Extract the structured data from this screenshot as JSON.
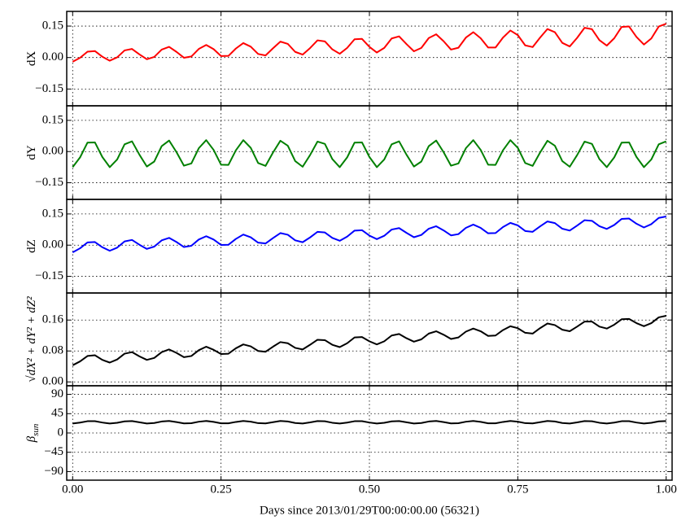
{
  "chart_data": [
    {
      "type": "line",
      "ylabel": "dX",
      "color": "#ff0000",
      "grid": true,
      "xlim": [
        -0.01,
        1.01
      ],
      "xticks": [
        0,
        0.25,
        0.5,
        0.75,
        1
      ],
      "ylim": [
        -0.23,
        0.22
      ],
      "yticks": [
        {
          "value": -0.15,
          "label": "−0.15"
        },
        {
          "value": 0,
          "label": "0.00"
        },
        {
          "value": 0.15,
          "label": "0.15"
        }
      ],
      "x": [
        0,
        0.0125,
        0.025,
        0.0375,
        0.05,
        0.0625,
        0.075,
        0.0875,
        0.1,
        0.1125,
        0.125,
        0.1375,
        0.15,
        0.1625,
        0.175,
        0.1875,
        0.2,
        0.2125,
        0.225,
        0.2375,
        0.25,
        0.2625,
        0.275,
        0.2875,
        0.3,
        0.3125,
        0.325,
        0.3375,
        0.35,
        0.3625,
        0.375,
        0.3875,
        0.4,
        0.4125,
        0.425,
        0.4375,
        0.45,
        0.4625,
        0.475,
        0.4875,
        0.5,
        0.5125,
        0.525,
        0.5375,
        0.55,
        0.5625,
        0.575,
        0.5875,
        0.6,
        0.6125,
        0.625,
        0.6375,
        0.65,
        0.6625,
        0.675,
        0.6875,
        0.7,
        0.7125,
        0.725,
        0.7375,
        0.75,
        0.7625,
        0.775,
        0.7875,
        0.8,
        0.8125,
        0.825,
        0.8375,
        0.85,
        0.8625,
        0.875,
        0.8875,
        0.9,
        0.9125,
        0.925,
        0.9375,
        0.95,
        0.9625,
        0.975,
        0.9875,
        1
      ],
      "values": [
        -0.02,
        -0.001,
        0.028,
        0.031,
        0.004,
        -0.015,
        0.001,
        0.034,
        0.041,
        0.015,
        -0.008,
        0.003,
        0.038,
        0.051,
        0.027,
        -0.001,
        0.005,
        0.041,
        0.06,
        0.04,
        0.007,
        0.008,
        0.043,
        0.069,
        0.052,
        0.017,
        0.01,
        0.044,
        0.076,
        0.065,
        0.027,
        0.014,
        0.045,
        0.082,
        0.077,
        0.039,
        0.018,
        0.046,
        0.087,
        0.089,
        0.051,
        0.024,
        0.046,
        0.091,
        0.101,
        0.064,
        0.03,
        0.046,
        0.093,
        0.111,
        0.078,
        0.038,
        0.047,
        0.095,
        0.121,
        0.092,
        0.048,
        0.048,
        0.095,
        0.129,
        0.107,
        0.058,
        0.05,
        0.095,
        0.136,
        0.121,
        0.07,
        0.053,
        0.094,
        0.142,
        0.135,
        0.083,
        0.057,
        0.092,
        0.146,
        0.148,
        0.098,
        0.062,
        0.091,
        0.148,
        0.161
      ]
    },
    {
      "type": "line",
      "ylabel": "dY",
      "color": "#008000",
      "grid": true,
      "xlim": [
        -0.01,
        1.01
      ],
      "xticks": [
        0,
        0.25,
        0.5,
        0.75,
        1
      ],
      "ylim": [
        -0.23,
        0.22
      ],
      "yticks": [
        {
          "value": -0.15,
          "label": "−0.15"
        },
        {
          "value": 0,
          "label": "0.00"
        },
        {
          "value": 0.15,
          "label": "0.15"
        }
      ],
      "x": [
        0,
        0.0125,
        0.025,
        0.0375,
        0.05,
        0.0625,
        0.075,
        0.0875,
        0.1,
        0.1125,
        0.125,
        0.1375,
        0.15,
        0.1625,
        0.175,
        0.1875,
        0.2,
        0.2125,
        0.225,
        0.2375,
        0.25,
        0.2625,
        0.275,
        0.2875,
        0.3,
        0.3125,
        0.325,
        0.3375,
        0.35,
        0.3625,
        0.375,
        0.3875,
        0.4,
        0.4125,
        0.425,
        0.4375,
        0.45,
        0.4625,
        0.475,
        0.4875,
        0.5,
        0.5125,
        0.525,
        0.5375,
        0.55,
        0.5625,
        0.575,
        0.5875,
        0.6,
        0.6125,
        0.625,
        0.6375,
        0.65,
        0.6625,
        0.675,
        0.6875,
        0.7,
        0.7125,
        0.725,
        0.7375,
        0.75,
        0.7625,
        0.775,
        0.7875,
        0.8,
        0.8125,
        0.825,
        0.8375,
        0.85,
        0.8625,
        0.875,
        0.8875,
        0.9,
        0.9125,
        0.925,
        0.9375,
        0.95,
        0.9625,
        0.975,
        0.9875,
        1
      ],
      "values": [
        -0.075,
        -0.028,
        0.043,
        0.044,
        -0.026,
        -0.075,
        -0.038,
        0.035,
        0.049,
        -0.015,
        -0.072,
        -0.048,
        0.026,
        0.053,
        -0.003,
        -0.068,
        -0.057,
        0.016,
        0.055,
        0.008,
        -0.063,
        -0.064,
        0.006,
        0.055,
        0.018,
        -0.055,
        -0.069,
        -0.005,
        0.052,
        0.028,
        -0.046,
        -0.073,
        -0.017,
        0.048,
        0.037,
        -0.036,
        -0.075,
        -0.028,
        0.043,
        0.044,
        -0.026,
        -0.075,
        -0.038,
        0.035,
        0.049,
        -0.015,
        -0.072,
        -0.048,
        0.026,
        0.053,
        -0.003,
        -0.068,
        -0.057,
        0.016,
        0.055,
        0.008,
        -0.063,
        -0.064,
        0.006,
        0.055,
        0.018,
        -0.055,
        -0.069,
        -0.005,
        0.052,
        0.028,
        -0.046,
        -0.073,
        -0.017,
        0.048,
        0.037,
        -0.036,
        -0.075,
        -0.028,
        0.043,
        0.044,
        -0.026,
        -0.075,
        -0.038,
        0.035,
        0.049
      ]
    },
    {
      "type": "line",
      "ylabel": "dZ",
      "color": "#0000ff",
      "grid": true,
      "xlim": [
        -0.01,
        1.01
      ],
      "xticks": [
        0,
        0.25,
        0.5,
        0.75,
        1
      ],
      "ylim": [
        -0.23,
        0.22
      ],
      "yticks": [
        {
          "value": -0.15,
          "label": "−0.15"
        },
        {
          "value": 0,
          "label": "0.00"
        },
        {
          "value": 0.15,
          "label": "0.15"
        }
      ],
      "x": [
        0,
        0.0125,
        0.025,
        0.0375,
        0.05,
        0.0625,
        0.075,
        0.0875,
        0.1,
        0.1125,
        0.125,
        0.1375,
        0.15,
        0.1625,
        0.175,
        0.1875,
        0.2,
        0.2125,
        0.225,
        0.2375,
        0.25,
        0.2625,
        0.275,
        0.2875,
        0.3,
        0.3125,
        0.325,
        0.3375,
        0.35,
        0.3625,
        0.375,
        0.3875,
        0.4,
        0.4125,
        0.425,
        0.4375,
        0.45,
        0.4625,
        0.475,
        0.4875,
        0.5,
        0.5125,
        0.525,
        0.5375,
        0.55,
        0.5625,
        0.575,
        0.5875,
        0.6,
        0.6125,
        0.625,
        0.6375,
        0.65,
        0.6625,
        0.675,
        0.6875,
        0.7,
        0.7125,
        0.725,
        0.7375,
        0.75,
        0.7625,
        0.775,
        0.7875,
        0.8,
        0.8125,
        0.825,
        0.8375,
        0.85,
        0.8625,
        0.875,
        0.8875,
        0.9,
        0.9125,
        0.925,
        0.9375,
        0.95,
        0.9625,
        0.975,
        0.9875,
        1
      ],
      "values": [
        -0.035,
        -0.015,
        0.013,
        0.015,
        -0.01,
        -0.027,
        -0.012,
        0.018,
        0.025,
        0.002,
        -0.018,
        -0.007,
        0.023,
        0.035,
        0.015,
        -0.009,
        -0.003,
        0.027,
        0.043,
        0.027,
        0.001,
        0.002,
        0.03,
        0.051,
        0.038,
        0.012,
        0.008,
        0.034,
        0.058,
        0.05,
        0.023,
        0.014,
        0.037,
        0.064,
        0.061,
        0.035,
        0.021,
        0.041,
        0.07,
        0.072,
        0.046,
        0.029,
        0.045,
        0.075,
        0.082,
        0.059,
        0.038,
        0.049,
        0.079,
        0.091,
        0.071,
        0.047,
        0.053,
        0.083,
        0.099,
        0.083,
        0.057,
        0.058,
        0.087,
        0.107,
        0.095,
        0.068,
        0.064,
        0.09,
        0.114,
        0.106,
        0.079,
        0.07,
        0.094,
        0.12,
        0.117,
        0.091,
        0.078,
        0.097,
        0.126,
        0.128,
        0.103,
        0.085,
        0.101,
        0.131,
        0.138
      ]
    },
    {
      "type": "line",
      "ylabel": "√dX² + dY² + dZ²",
      "color": "#000000",
      "grid": true,
      "xlim": [
        -0.01,
        1.01
      ],
      "xticks": [
        0,
        0.25,
        0.5,
        0.75,
        1
      ],
      "ylim": [
        -0.01,
        0.23
      ],
      "yticks": [
        {
          "value": 0,
          "label": "0.00"
        },
        {
          "value": 0.08,
          "label": "0.08"
        },
        {
          "value": 0.16,
          "label": "0.16"
        }
      ],
      "x": [
        0,
        0.0125,
        0.025,
        0.0375,
        0.05,
        0.0625,
        0.075,
        0.0875,
        0.1,
        0.1125,
        0.125,
        0.1375,
        0.15,
        0.1625,
        0.175,
        0.1875,
        0.2,
        0.2125,
        0.225,
        0.2375,
        0.25,
        0.2625,
        0.275,
        0.2875,
        0.3,
        0.3125,
        0.325,
        0.3375,
        0.35,
        0.3625,
        0.375,
        0.3875,
        0.4,
        0.4125,
        0.425,
        0.4375,
        0.45,
        0.4625,
        0.475,
        0.4875,
        0.5,
        0.5125,
        0.525,
        0.5375,
        0.55,
        0.5625,
        0.575,
        0.5875,
        0.6,
        0.6125,
        0.625,
        0.6375,
        0.65,
        0.6625,
        0.675,
        0.6875,
        0.7,
        0.7125,
        0.725,
        0.7375,
        0.75,
        0.7625,
        0.775,
        0.7875,
        0.8,
        0.8125,
        0.825,
        0.8375,
        0.85,
        0.8625,
        0.875,
        0.8875,
        0.9,
        0.9125,
        0.925,
        0.9375,
        0.95,
        0.9625,
        0.975,
        0.9875,
        1
      ],
      "values": [
        0.043,
        0.053,
        0.067,
        0.069,
        0.057,
        0.05,
        0.058,
        0.073,
        0.077,
        0.066,
        0.057,
        0.062,
        0.077,
        0.084,
        0.075,
        0.064,
        0.067,
        0.082,
        0.091,
        0.083,
        0.072,
        0.073,
        0.087,
        0.097,
        0.092,
        0.08,
        0.078,
        0.091,
        0.103,
        0.1,
        0.088,
        0.084,
        0.096,
        0.109,
        0.108,
        0.096,
        0.09,
        0.1,
        0.115,
        0.116,
        0.105,
        0.097,
        0.105,
        0.12,
        0.124,
        0.113,
        0.104,
        0.11,
        0.125,
        0.131,
        0.122,
        0.111,
        0.115,
        0.13,
        0.138,
        0.131,
        0.119,
        0.12,
        0.134,
        0.144,
        0.139,
        0.127,
        0.125,
        0.139,
        0.151,
        0.147,
        0.135,
        0.131,
        0.143,
        0.156,
        0.156,
        0.143,
        0.138,
        0.148,
        0.162,
        0.163,
        0.152,
        0.144,
        0.152,
        0.167,
        0.171
      ]
    },
    {
      "type": "line",
      "ylabel": "β",
      "ylabel_sub": "sun",
      "color": "#000000",
      "grid": true,
      "xlabel": "Days since 2013/01/29T00:00:00.00 (56321)",
      "xlim": [
        -0.01,
        1.01
      ],
      "xticks": [
        {
          "value": 0,
          "label": "0.00"
        },
        {
          "value": 0.25,
          "label": "0.25"
        },
        {
          "value": 0.5,
          "label": "0.50"
        },
        {
          "value": 0.75,
          "label": "0.75"
        },
        {
          "value": 1,
          "label": "1.00"
        }
      ],
      "ylim": [
        -110,
        110
      ],
      "yticks": [
        {
          "value": -90,
          "label": "−90"
        },
        {
          "value": -45,
          "label": "−45"
        },
        0,
        45,
        90
      ],
      "x": [
        0,
        0.0125,
        0.025,
        0.0375,
        0.05,
        0.0625,
        0.075,
        0.0875,
        0.1,
        0.1125,
        0.125,
        0.1375,
        0.15,
        0.1625,
        0.175,
        0.1875,
        0.2,
        0.2125,
        0.225,
        0.2375,
        0.25,
        0.2625,
        0.275,
        0.2875,
        0.3,
        0.3125,
        0.325,
        0.3375,
        0.35,
        0.3625,
        0.375,
        0.3875,
        0.4,
        0.4125,
        0.425,
        0.4375,
        0.45,
        0.4625,
        0.475,
        0.4875,
        0.5,
        0.5125,
        0.525,
        0.5375,
        0.55,
        0.5625,
        0.575,
        0.5875,
        0.6,
        0.6125,
        0.625,
        0.6375,
        0.65,
        0.6625,
        0.675,
        0.6875,
        0.7,
        0.7125,
        0.725,
        0.7375,
        0.75,
        0.7625,
        0.775,
        0.7875,
        0.8,
        0.8125,
        0.825,
        0.8375,
        0.85,
        0.8625,
        0.875,
        0.8875,
        0.9,
        0.9125,
        0.925,
        0.9375,
        0.95,
        0.9625,
        0.975,
        0.9875,
        1
      ],
      "values": [
        22.0,
        24.2,
        27.4,
        27.5,
        24.3,
        22.0,
        23.7,
        27.1,
        27.7,
        24.8,
        22.1,
        23.2,
        26.7,
        27.9,
        25.3,
        22.3,
        22.8,
        26.2,
        28.0,
        25.8,
        22.6,
        22.5,
        25.7,
        28.0,
        26.3,
        22.9,
        22.3,
        25.2,
        27.9,
        26.8,
        23.3,
        22.1,
        24.7,
        27.7,
        27.2,
        23.8,
        22.0,
        24.2,
        27.4,
        27.5,
        24.3,
        22.0,
        23.7,
        27.1,
        27.7,
        24.8,
        22.1,
        23.2,
        26.7,
        27.9,
        25.3,
        22.3,
        22.8,
        26.2,
        28.0,
        25.8,
        22.6,
        22.5,
        25.7,
        28.0,
        26.3,
        22.9,
        22.3,
        25.2,
        27.9,
        26.8,
        23.3,
        22.1,
        24.7,
        27.7,
        27.2,
        23.8,
        22.0,
        24.2,
        27.4,
        27.5,
        24.3,
        22.0,
        23.7,
        27.1,
        27.7
      ]
    }
  ]
}
